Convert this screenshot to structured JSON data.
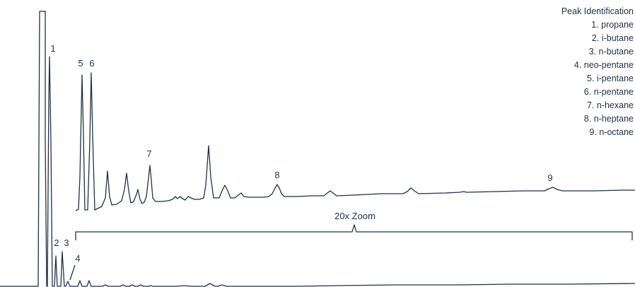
{
  "chart_data": {
    "type": "line",
    "title": "",
    "xlabel": "",
    "ylabel": "",
    "legend": {
      "title": "Peak Identification",
      "placement": "top-right",
      "entries": [
        "1. propane",
        "2. i-butane",
        "3. n-butane",
        "4. neo-pentane",
        "5. i-pentane",
        "6. n-pentane",
        "7. n-hexane",
        "8. n-heptane",
        "9. n-octane"
      ]
    },
    "zoom_label": "20x Zoom",
    "colors": {
      "trace": "#1f3147",
      "text": "#1f3147"
    },
    "series": [
      {
        "view": "full-scale",
        "peaks": [
          {
            "label": "1",
            "relative_height": 0.82
          },
          {
            "label": "2",
            "relative_height": 0.12
          },
          {
            "label": "3",
            "relative_height": 0.13
          },
          {
            "label": "4",
            "relative_height": 0.01
          },
          {
            "label": "5",
            "relative_height": 0.025
          },
          {
            "label": "6",
            "relative_height": 0.025
          }
        ]
      },
      {
        "view": "20x zoom",
        "peaks": [
          {
            "label": "5",
            "relative_height": 0.78
          },
          {
            "label": "6",
            "relative_height": 0.78
          },
          {
            "label": "7",
            "relative_height": 0.26
          },
          {
            "label": "8",
            "relative_height": 0.1
          },
          {
            "label": "9",
            "relative_height": 0.03
          }
        ]
      }
    ]
  }
}
